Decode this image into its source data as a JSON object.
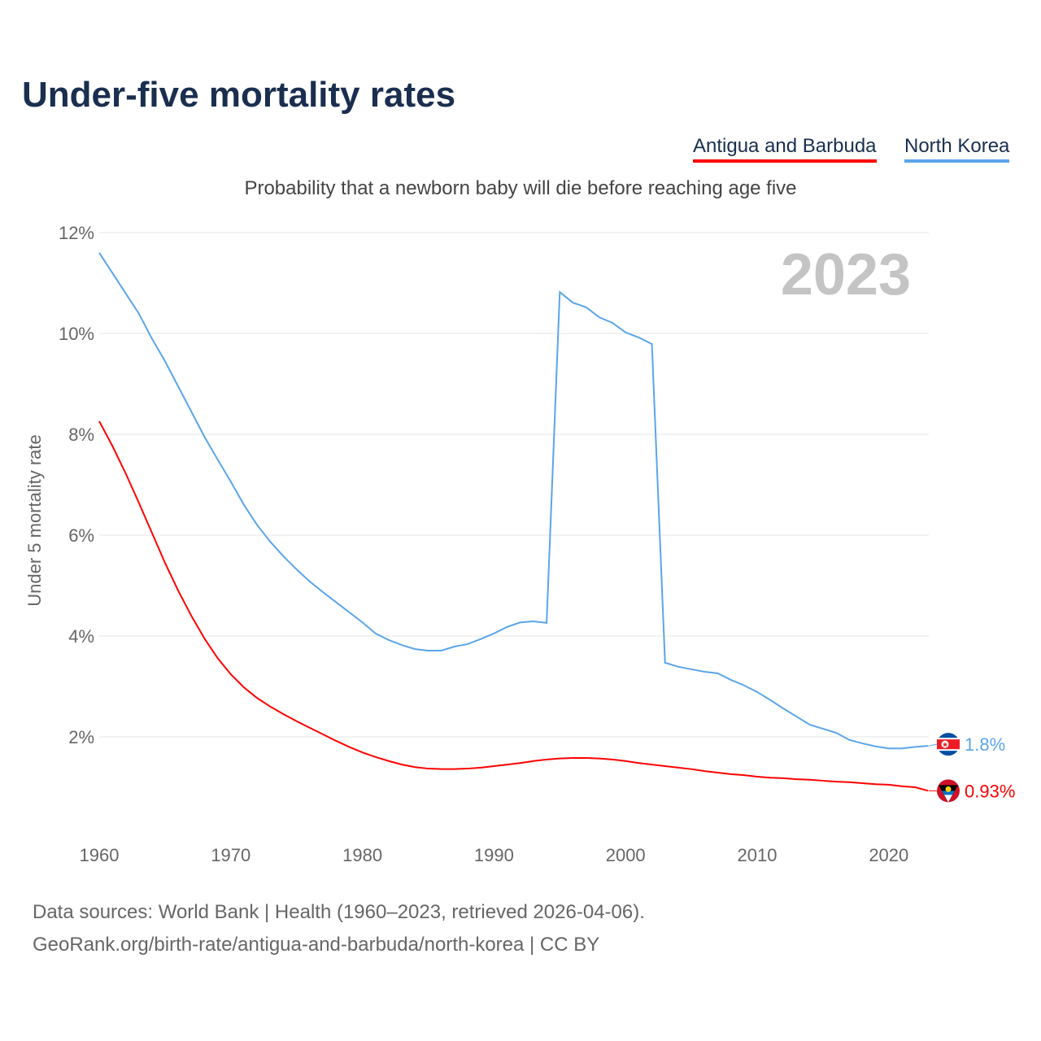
{
  "chart_data": {
    "type": "line",
    "title": "Under-five mortality rates",
    "subtitle": "Probability that a newborn baby will die before reaching age five",
    "ylabel": "Under 5 mortality rate",
    "xlabel": "",
    "year_label": "2023",
    "ylim": [
      0,
      12
    ],
    "xlim": [
      1960,
      2023
    ],
    "yticks": [
      {
        "v": 2,
        "label": "2%"
      },
      {
        "v": 4,
        "label": "4%"
      },
      {
        "v": 6,
        "label": "6%"
      },
      {
        "v": 8,
        "label": "8%"
      },
      {
        "v": 10,
        "label": "10%"
      },
      {
        "v": 12,
        "label": "12%"
      }
    ],
    "xticks": [
      1960,
      1970,
      1980,
      1990,
      2000,
      2010,
      2020
    ],
    "grid": true,
    "legend": "top-right",
    "x_start": 1960,
    "series": [
      {
        "name": "Antigua and Barbuda",
        "color": "#ff0000",
        "end_label": "0.93%",
        "values": [
          8.26,
          7.77,
          7.23,
          6.65,
          6.05,
          5.45,
          4.9,
          4.4,
          3.95,
          3.56,
          3.24,
          2.98,
          2.77,
          2.6,
          2.45,
          2.31,
          2.18,
          2.05,
          1.92,
          1.8,
          1.69,
          1.6,
          1.52,
          1.45,
          1.4,
          1.37,
          1.36,
          1.36,
          1.37,
          1.39,
          1.42,
          1.45,
          1.48,
          1.52,
          1.55,
          1.57,
          1.58,
          1.58,
          1.57,
          1.55,
          1.52,
          1.48,
          1.45,
          1.42,
          1.39,
          1.36,
          1.32,
          1.29,
          1.26,
          1.24,
          1.21,
          1.19,
          1.18,
          1.16,
          1.15,
          1.13,
          1.11,
          1.1,
          1.08,
          1.06,
          1.05,
          1.02,
          1.0,
          0.93
        ]
      },
      {
        "name": "North Korea",
        "color": "#5aa5ea",
        "end_label": "1.8%",
        "values": [
          11.6,
          11.2,
          10.8,
          10.4,
          9.9,
          9.45,
          8.95,
          8.45,
          7.95,
          7.5,
          7.06,
          6.6,
          6.2,
          5.87,
          5.58,
          5.32,
          5.08,
          4.87,
          4.67,
          4.47,
          4.27,
          4.05,
          3.92,
          3.82,
          3.74,
          3.71,
          3.71,
          3.79,
          3.84,
          3.94,
          4.05,
          4.18,
          4.27,
          4.29,
          4.26,
          10.82,
          10.61,
          10.52,
          10.32,
          10.21,
          10.02,
          9.92,
          9.79,
          3.47,
          3.39,
          3.34,
          3.29,
          3.26,
          3.13,
          3.02,
          2.89,
          2.73,
          2.56,
          2.4,
          2.24,
          2.16,
          2.08,
          1.94,
          1.87,
          1.81,
          1.77,
          1.77,
          1.8,
          1.82
        ]
      }
    ]
  },
  "footer": {
    "line1": "Data sources: World Bank | Health (1960–2023, retrieved 2026-04-06).",
    "line2": "GeoRank.org/birth-rate/antigua-and-barbuda/north-korea | CC BY"
  }
}
